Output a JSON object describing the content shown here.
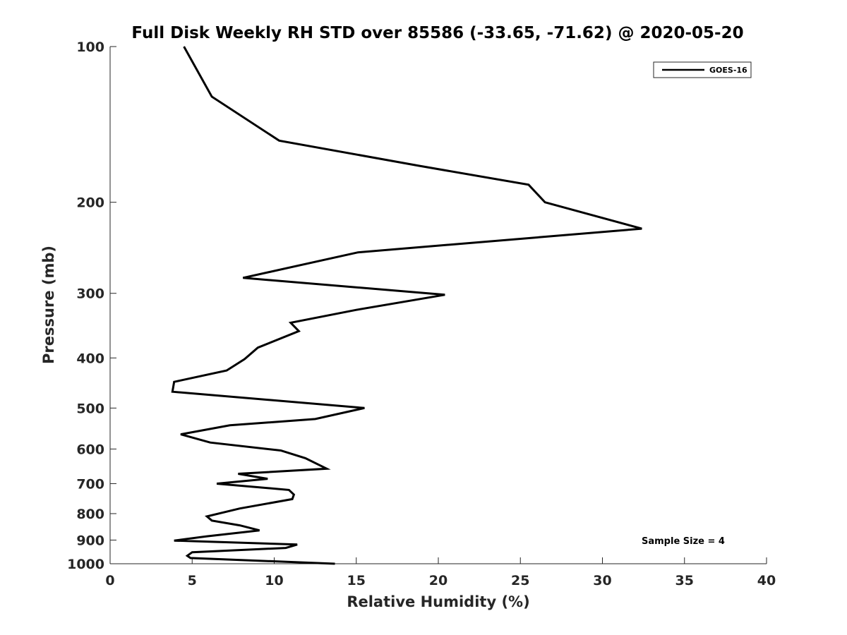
{
  "chart_data": {
    "type": "line",
    "title": "Full Disk Weekly RH STD over 85586 (-33.65, -71.62) @ 2020-05-20",
    "xlabel": "Relative Humidity (%)",
    "ylabel": "Pressure (mb)",
    "xlim": [
      0,
      40
    ],
    "ylim": [
      100,
      1000
    ],
    "y_scale": "log",
    "y_reversed": true,
    "x_ticks": [
      0,
      5,
      10,
      15,
      20,
      25,
      30,
      35,
      40
    ],
    "x_tick_labels": [
      "0",
      "5",
      "10",
      "15",
      "20",
      "25",
      "30",
      "35",
      "40"
    ],
    "y_ticks": [
      100,
      200,
      300,
      400,
      500,
      600,
      700,
      800,
      900,
      1000
    ],
    "y_tick_labels": [
      "100",
      "200",
      "300",
      "400",
      "500",
      "600",
      "700",
      "800",
      "900",
      "1000"
    ],
    "grid": false,
    "legend_position": "top-right",
    "annotation": "Sample Size = 4",
    "series": [
      {
        "name": "GOES-16",
        "color": "#000000",
        "points": [
          [
            4.5,
            100
          ],
          [
            6.2,
            125
          ],
          [
            10.3,
            152
          ],
          [
            18.8,
            170
          ],
          [
            25.5,
            185
          ],
          [
            26.5,
            200
          ],
          [
            32.4,
            225
          ],
          [
            15.1,
            250
          ],
          [
            8.1,
            280
          ],
          [
            20.4,
            302
          ],
          [
            15.0,
            323
          ],
          [
            11.0,
            342
          ],
          [
            11.5,
            355
          ],
          [
            9.0,
            382
          ],
          [
            8.2,
            402
          ],
          [
            7.1,
            423
          ],
          [
            3.9,
            445
          ],
          [
            3.8,
            465
          ],
          [
            15.5,
            500
          ],
          [
            12.5,
            525
          ],
          [
            7.3,
            540
          ],
          [
            4.3,
            562
          ],
          [
            6.1,
            583
          ],
          [
            10.4,
            604
          ],
          [
            11.9,
            625
          ],
          [
            13.2,
            655
          ],
          [
            7.8,
            670
          ],
          [
            9.6,
            685
          ],
          [
            6.5,
            700
          ],
          [
            10.9,
            720
          ],
          [
            11.2,
            735
          ],
          [
            11.1,
            750
          ],
          [
            7.9,
            782
          ],
          [
            5.9,
            810
          ],
          [
            6.2,
            825
          ],
          [
            7.9,
            843
          ],
          [
            9.1,
            862
          ],
          [
            5.9,
            885
          ],
          [
            3.9,
            902
          ],
          [
            11.4,
            918
          ],
          [
            10.7,
            932
          ],
          [
            5.0,
            950
          ],
          [
            4.7,
            965
          ],
          [
            4.9,
            975
          ],
          [
            13.7,
            1000
          ]
        ]
      }
    ]
  }
}
